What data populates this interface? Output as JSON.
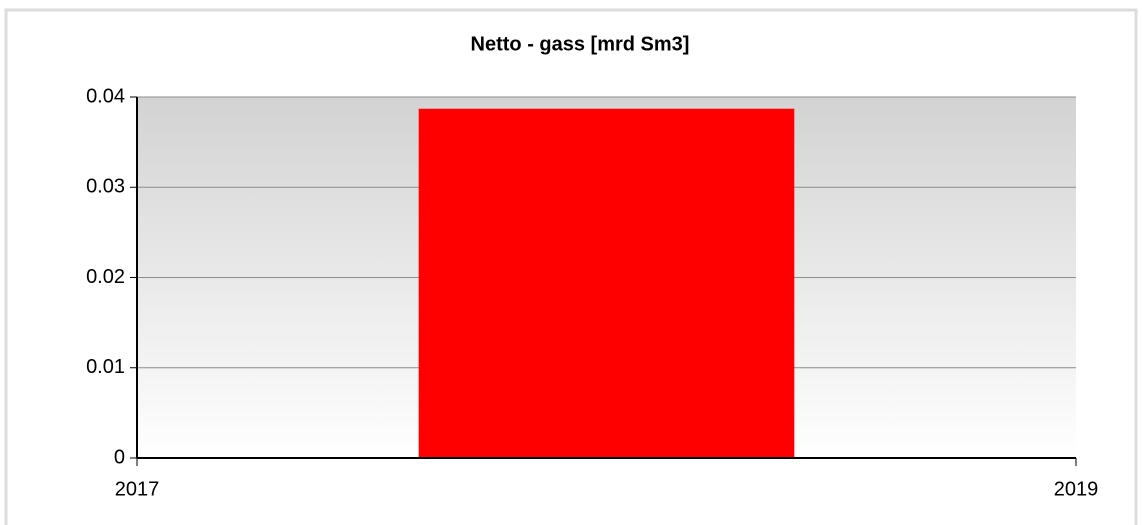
{
  "chart_data": {
    "type": "bar",
    "title": "Netto - gass [mrd Sm3]",
    "x": [
      2018
    ],
    "values": [
      0.0387
    ],
    "color": "#ff0000",
    "xlim": [
      2017,
      2019
    ],
    "xticks": [
      2017,
      2019
    ],
    "ylim": [
      0,
      0.04
    ],
    "yticks": [
      0,
      0.01,
      0.02,
      0.03,
      0.04
    ],
    "grid": true
  }
}
